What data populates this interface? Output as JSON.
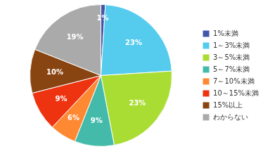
{
  "chart_data": {
    "type": "pie",
    "categories": [
      "1%未満",
      "1～3%未満",
      "3～5%未満",
      "5～7%未満",
      "7～10%未満",
      "10～15%未満",
      "15%以上",
      "わからない"
    ],
    "values": [
      1,
      23,
      23,
      9,
      6,
      9,
      10,
      19
    ],
    "value_labels": [
      "1%",
      "23%",
      "23%",
      "9%",
      "6%",
      "9%",
      "10%",
      "19%"
    ],
    "colors": [
      "#4455aa",
      "#55ccee",
      "#aadd33",
      "#44bbaa",
      "#ff8833",
      "#ee3311",
      "#884411",
      "#aaaaaa"
    ],
    "data_labels": true,
    "legend": "right"
  }
}
